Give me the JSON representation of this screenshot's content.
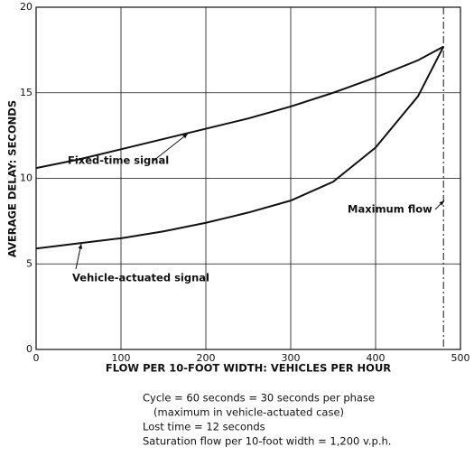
{
  "chart_data": {
    "type": "line",
    "x_label": "FLOW PER 10-FOOT WIDTH: VEHICLES PER HOUR",
    "y_label": "AVERAGE DELAY: SECONDS",
    "x": [
      0,
      50,
      100,
      150,
      200,
      250,
      300,
      350,
      400,
      450,
      480
    ],
    "series": [
      {
        "color": "#111111",
        "values": [
          10.6,
          11.1,
          11.7,
          12.3,
          12.9,
          13.5,
          14.2,
          15.0,
          15.9,
          16.9,
          17.7
        ]
      },
      {
        "color": "#111111",
        "values": [
          5.9,
          6.2,
          6.5,
          6.9,
          7.4,
          8.0,
          8.7,
          9.8,
          11.8,
          14.8,
          17.7
        ]
      }
    ],
    "annotations": [
      {
        "text": "Fixed-time signal"
      },
      {
        "text": "Vehicle-actuated signal"
      },
      {
        "text": "Maximum flow",
        "x": 480
      }
    ],
    "notes": [
      "Cycle = 60 seconds = 30 seconds per phase",
      "(maximum in vehicle-actuated case)",
      "Lost time = 12 seconds",
      "Saturation flow per 10-foot width = 1,200 v.p.h."
    ],
    "xlim": [
      0,
      500
    ],
    "xticks": [
      0,
      100,
      200,
      300,
      400,
      500
    ],
    "ylim": [
      0,
      20
    ],
    "yticks": [
      0,
      5,
      10,
      15,
      20
    ],
    "grid": true
  }
}
